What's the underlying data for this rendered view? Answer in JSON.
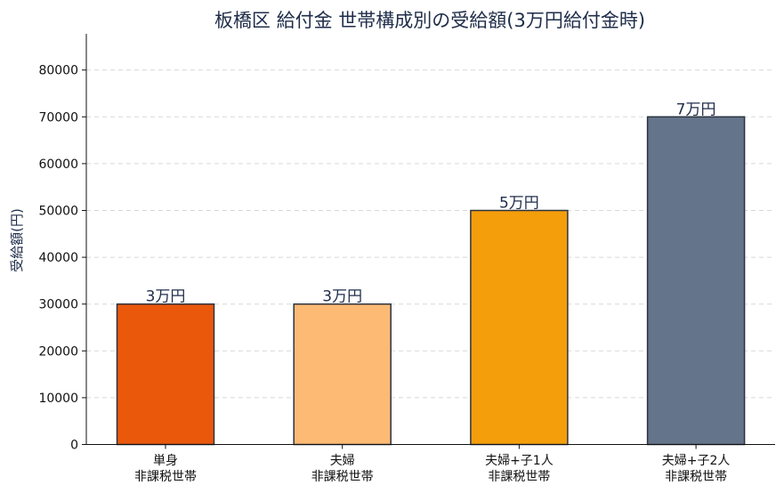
{
  "chart_data": {
    "type": "bar",
    "title": "板橋区 給付金 世帯構成別の受給額(3万円給付金時)",
    "ylabel": "受給額(円)",
    "xlabel": "",
    "ylim": [
      0,
      87000
    ],
    "yticks": [
      0,
      10000,
      20000,
      30000,
      40000,
      50000,
      60000,
      70000,
      80000
    ],
    "grid": true,
    "categories": [
      [
        "単身",
        "非課税世帯"
      ],
      [
        "夫婦",
        "非課税世帯"
      ],
      [
        "夫婦+子1人",
        "非課税世帯"
      ],
      [
        "夫婦+子2人",
        "非課税世帯"
      ]
    ],
    "values": [
      30000,
      30000,
      50000,
      70000
    ],
    "data_labels": [
      "3万円",
      "3万円",
      "5万円",
      "7万円"
    ],
    "colors": [
      "#ea580c",
      "#fdba74",
      "#f59e0b",
      "#64748b"
    ]
  }
}
